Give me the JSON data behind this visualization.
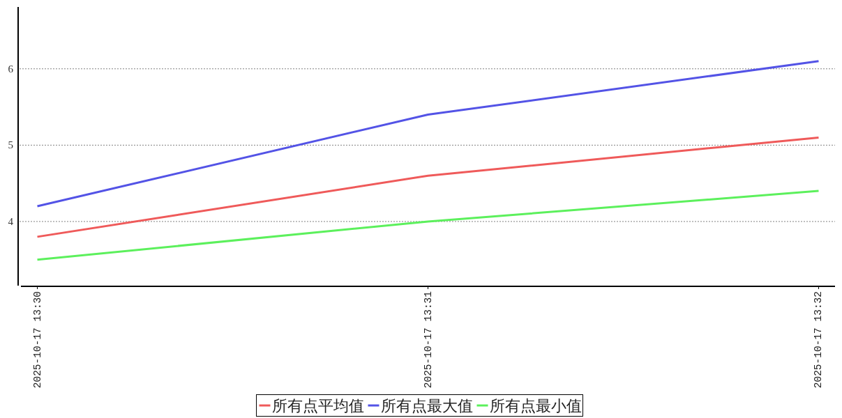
{
  "chart_data": {
    "type": "line",
    "categories": [
      "2025-10-17 13:30",
      "2025-10-17 13:31",
      "2025-10-17 13:32"
    ],
    "series": [
      {
        "name": "所有点平均值",
        "color": "#ef5a5a",
        "values": [
          3.8,
          4.6,
          5.1
        ]
      },
      {
        "name": "所有点最大值",
        "color": "#5353e6",
        "values": [
          4.2,
          5.4,
          6.1
        ]
      },
      {
        "name": "所有点最小值",
        "color": "#5cf05c",
        "values": [
          3.5,
          4.0,
          4.4
        ]
      }
    ],
    "ylim": [
      3.16,
      6.81
    ],
    "yticks": [
      4,
      5,
      6
    ],
    "grid": "y",
    "legend": "bottom"
  }
}
